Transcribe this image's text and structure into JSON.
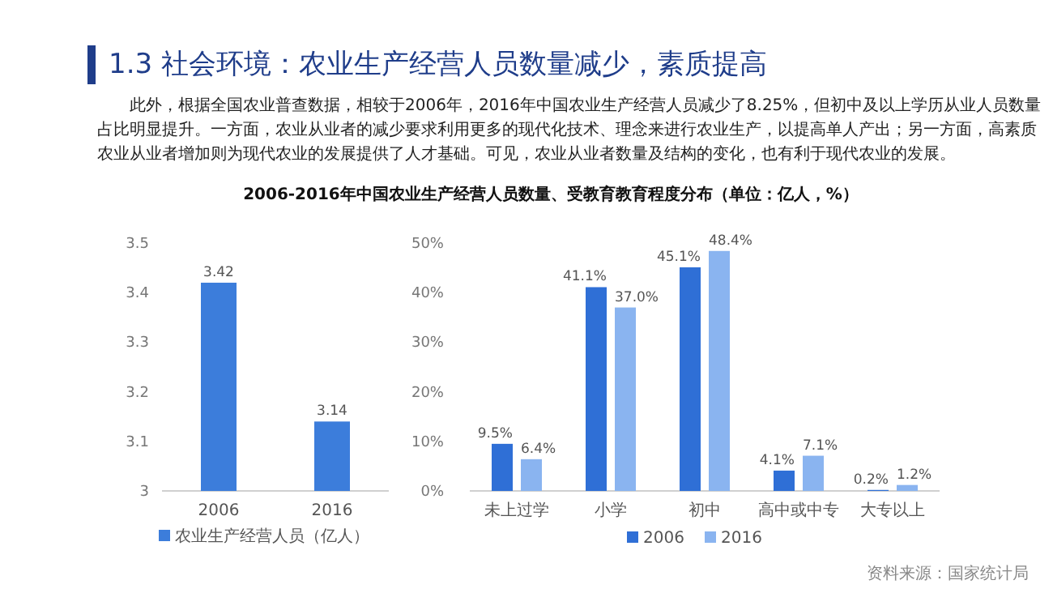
{
  "chart_data": [
    {
      "type": "bar",
      "title": "1.3 社会环境：农业生产经营人员数量减少，素质提高",
      "subtitle": "此外，根据全国农业普查数据，相较于2006年，2016年中国农业生产经营人员减少了8.25%，但初中及以上学历从业人员数量占比明显提升。一方面，农业从业者的减少要求利用更多的现代化技术、理念来进行农业生产，以提高单人产出；另一方面，高素质农业从业者增加则为现代农业的发展提供了人才基础。可见，农业从业者数量及结构的变化，也有利于现代农业的发展。",
      "annotations": [
        "2006-2016年中国农业生产经营人员数量、受教育教育程度分布（单位：亿人，%）"
      ],
      "categories": [
        "2006",
        "2016"
      ],
      "series": [
        {
          "name": "农业生产经营人员（亿人）",
          "color": "#3c7ddb",
          "values": [
            3.42,
            3.14
          ]
        }
      ],
      "ylim": [
        3,
        3.5
      ],
      "yticks": [
        3,
        3.1,
        3.2,
        3.3,
        3.4,
        3.5
      ],
      "data_labels": true,
      "legend": "bottom"
    },
    {
      "type": "bar",
      "categories": [
        "未上过学",
        "小学",
        "初中",
        "高中或中专",
        "大专以上"
      ],
      "series": [
        {
          "name": "2006",
          "color": "#2f6fd6",
          "values": [
            9.5,
            41.1,
            45.1,
            4.1,
            0.2
          ],
          "value_labels": [
            "9.5%",
            "41.1%",
            "45.1%",
            "4.1%",
            "0.2%"
          ]
        },
        {
          "name": "2016",
          "color": "#8ab4f0",
          "values": [
            6.4,
            37.0,
            48.4,
            7.1,
            1.2
          ],
          "value_labels": [
            "6.4%",
            "37.0%",
            "48.4%",
            "7.1%",
            "1.2%"
          ]
        }
      ],
      "ylim": [
        0,
        50
      ],
      "yticks": [
        {
          "value": 0,
          "label": "0%"
        },
        {
          "value": 10,
          "label": "10%"
        },
        {
          "value": 20,
          "label": "20%"
        },
        {
          "value": 30,
          "label": "30%"
        },
        {
          "value": 40,
          "label": "40%"
        },
        {
          "value": 50,
          "label": "50%"
        }
      ],
      "legend": "bottom",
      "annotations": [
        "资料来源：国家统计局"
      ]
    }
  ]
}
